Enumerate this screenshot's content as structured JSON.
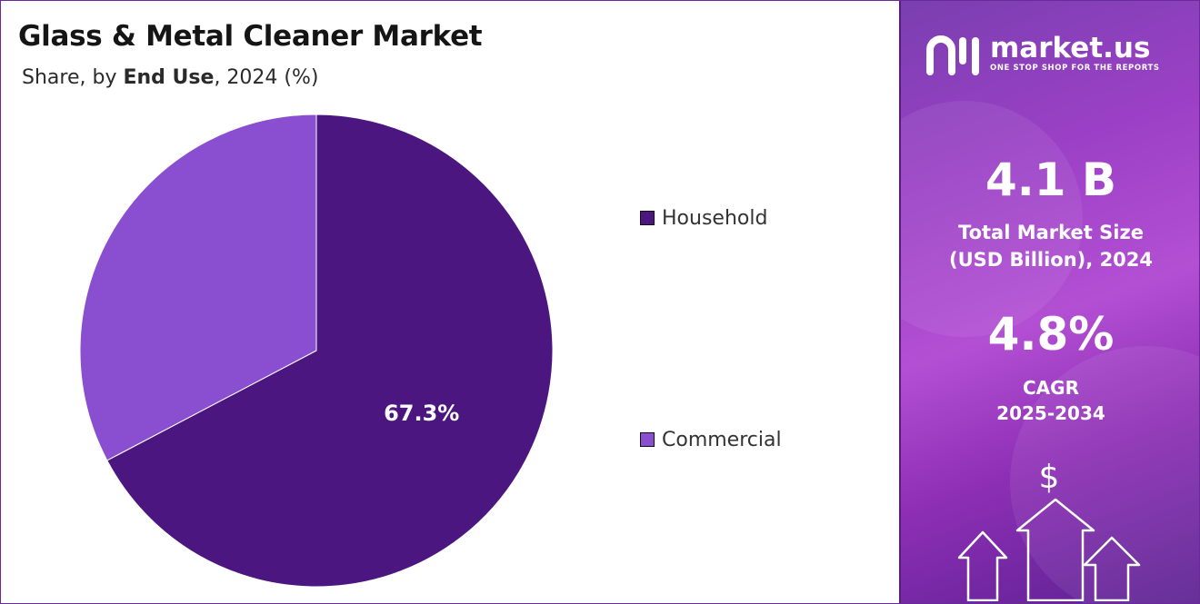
{
  "chart_data": {
    "type": "pie",
    "title": "Glass & Metal Cleaner Market",
    "subtitle": {
      "prefix": "Share, by ",
      "emphasis": "End Use",
      "suffix": ", 2024 (%)"
    },
    "categories": [
      "Household",
      "Commercial"
    ],
    "values": [
      67.3,
      32.7
    ],
    "data_labels": [
      "67.3%",
      ""
    ],
    "colors": [
      "#4b1680",
      "#8a4fd0"
    ],
    "legend_position": "right",
    "grid": false
  },
  "side_panel": {
    "brand_name": "market.us",
    "brand_tagline": "ONE STOP SHOP FOR THE REPORTS",
    "market_size_value": "4.1 B",
    "market_size_label_line1": "Total Market Size",
    "market_size_label_line2": "(USD Billion), 2024",
    "cagr_value": "4.8%",
    "cagr_label_line1": "CAGR",
    "cagr_label_line2": "2025-2034",
    "dollar_symbol": "$",
    "icons": [
      "market-us-logo-icon",
      "dollar-icon",
      "growth-arrows-icon"
    ]
  }
}
